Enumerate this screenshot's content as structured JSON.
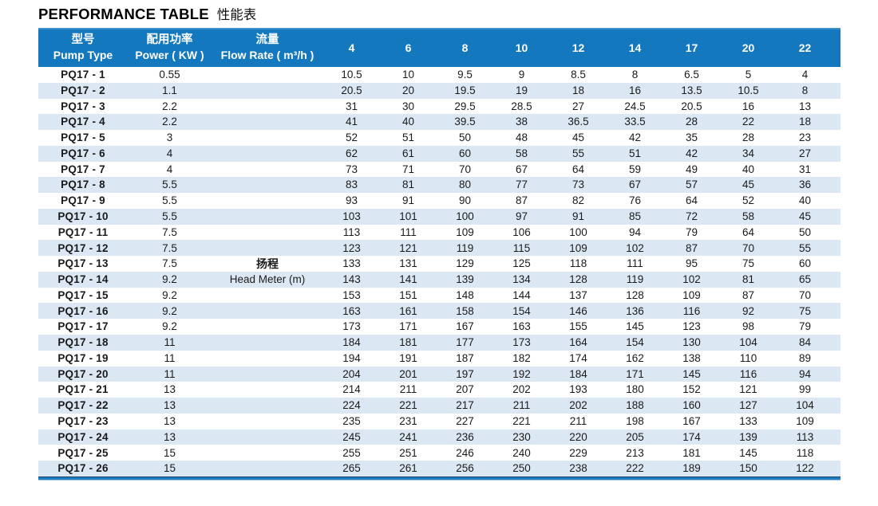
{
  "title": {
    "en": "PERFORMANCE TABLE",
    "zh": "性能表"
  },
  "colors": {
    "header_bg": "#1478BE",
    "stripe": "#DBE8F4",
    "text": "#1A1A1A",
    "border_dark": "#1D3F5E",
    "border_blue": "#1F7DC2",
    "border_light": "#9CC4E2"
  },
  "table": {
    "columns": {
      "pump_type": {
        "zh": "型号",
        "en": "Pump Type"
      },
      "power": {
        "zh": "配用功率",
        "en": "Power ( KW )"
      },
      "flow_rate": {
        "zh": "流量",
        "en": "Flow Rate ( m³/h )"
      }
    },
    "flow_columns": [
      "4",
      "6",
      "8",
      "10",
      "12",
      "14",
      "17",
      "20",
      "22"
    ],
    "head_label": {
      "zh": "扬程",
      "en": "Head Meter (m)"
    },
    "rows": [
      {
        "model": "PQ17 - 1",
        "power": "0.55",
        "values": [
          10.5,
          10,
          9.5,
          9,
          8.5,
          8,
          6.5,
          5,
          4
        ]
      },
      {
        "model": "PQ17 - 2",
        "power": "1.1",
        "values": [
          20.5,
          20,
          19.5,
          19,
          18,
          16,
          13.5,
          10.5,
          8
        ]
      },
      {
        "model": "PQ17 - 3",
        "power": "2.2",
        "values": [
          31,
          30,
          29.5,
          28.5,
          27,
          24.5,
          20.5,
          16,
          13
        ]
      },
      {
        "model": "PQ17 - 4",
        "power": "2.2",
        "values": [
          41,
          40,
          39.5,
          38,
          36.5,
          33.5,
          28,
          22,
          18
        ]
      },
      {
        "model": "PQ17 - 5",
        "power": "3",
        "values": [
          52,
          51,
          50,
          48,
          45,
          42,
          35,
          28,
          23
        ]
      },
      {
        "model": "PQ17 - 6",
        "power": "4",
        "values": [
          62,
          61,
          60,
          58,
          55,
          51,
          42,
          34,
          27
        ]
      },
      {
        "model": "PQ17 - 7",
        "power": "4",
        "values": [
          73,
          71,
          70,
          67,
          64,
          59,
          49,
          40,
          31
        ]
      },
      {
        "model": "PQ17 - 8",
        "power": "5.5",
        "values": [
          83,
          81,
          80,
          77,
          73,
          67,
          57,
          45,
          36
        ]
      },
      {
        "model": "PQ17 - 9",
        "power": "5.5",
        "values": [
          93,
          91,
          90,
          87,
          82,
          76,
          64,
          52,
          40
        ]
      },
      {
        "model": "PQ17 - 10",
        "power": "5.5",
        "values": [
          103,
          101,
          100,
          97,
          91,
          85,
          72,
          58,
          45
        ]
      },
      {
        "model": "PQ17 - 11",
        "power": "7.5",
        "values": [
          113,
          111,
          109,
          106,
          100,
          94,
          79,
          64,
          50
        ]
      },
      {
        "model": "PQ17 - 12",
        "power": "7.5",
        "values": [
          123,
          121,
          119,
          115,
          109,
          102,
          87,
          70,
          55
        ]
      },
      {
        "model": "PQ17 - 13",
        "power": "7.5",
        "note": "扬程",
        "note_bold": true,
        "values": [
          133,
          131,
          129,
          125,
          118,
          111,
          95,
          75,
          60
        ]
      },
      {
        "model": "PQ17 - 14",
        "power": "9.2",
        "note": "Head Meter (m)",
        "values": [
          143,
          141,
          139,
          134,
          128,
          119,
          102,
          81,
          65
        ]
      },
      {
        "model": "PQ17 - 15",
        "power": "9.2",
        "values": [
          153,
          151,
          148,
          144,
          137,
          128,
          109,
          87,
          70
        ]
      },
      {
        "model": "PQ17 - 16",
        "power": "9.2",
        "values": [
          163,
          161,
          158,
          154,
          146,
          136,
          116,
          92,
          75
        ]
      },
      {
        "model": "PQ17 - 17",
        "power": "9.2",
        "values": [
          173,
          171,
          167,
          163,
          155,
          145,
          123,
          98,
          79
        ]
      },
      {
        "model": "PQ17 - 18",
        "power": "11",
        "values": [
          184,
          181,
          177,
          173,
          164,
          154,
          130,
          104,
          84
        ]
      },
      {
        "model": "PQ17 - 19",
        "power": "11",
        "values": [
          194,
          191,
          187,
          182,
          174,
          162,
          138,
          110,
          89
        ]
      },
      {
        "model": "PQ17 - 20",
        "power": "11",
        "values": [
          204,
          201,
          197,
          192,
          184,
          171,
          145,
          116,
          94
        ]
      },
      {
        "model": "PQ17 - 21",
        "power": "13",
        "values": [
          214,
          211,
          207,
          202,
          193,
          180,
          152,
          121,
          99
        ]
      },
      {
        "model": "PQ17 - 22",
        "power": "13",
        "values": [
          224,
          221,
          217,
          211,
          202,
          188,
          160,
          127,
          104
        ]
      },
      {
        "model": "PQ17 - 23",
        "power": "13",
        "values": [
          235,
          231,
          227,
          221,
          211,
          198,
          167,
          133,
          109
        ]
      },
      {
        "model": "PQ17 - 24",
        "power": "13",
        "values": [
          245,
          241,
          236,
          230,
          220,
          205,
          174,
          139,
          113
        ]
      },
      {
        "model": "PQ17 - 25",
        "power": "15",
        "values": [
          255,
          251,
          246,
          240,
          229,
          213,
          181,
          145,
          118
        ]
      },
      {
        "model": "PQ17 - 26",
        "power": "15",
        "values": [
          265,
          261,
          256,
          250,
          238,
          222,
          189,
          150,
          122
        ]
      }
    ]
  }
}
